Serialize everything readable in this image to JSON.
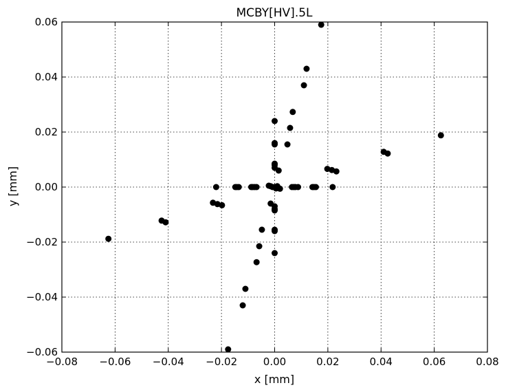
{
  "chart_data": {
    "type": "scatter",
    "title": "MCBY[HV].5L",
    "xlabel": "x [mm]",
    "ylabel": "y [mm]",
    "xlim": [
      -0.08,
      0.08
    ],
    "ylim": [
      -0.06,
      0.06
    ],
    "xticks": [
      -0.08,
      -0.06,
      -0.04,
      -0.02,
      0.0,
      0.02,
      0.04,
      0.06,
      0.08
    ],
    "xtick_labels": [
      "−0.08",
      "−0.06",
      "−0.04",
      "−0.02",
      "0.00",
      "0.02",
      "0.04",
      "0.06",
      "0.08"
    ],
    "yticks": [
      -0.06,
      -0.04,
      -0.02,
      0.0,
      0.02,
      0.04,
      0.06
    ],
    "ytick_labels": [
      "−0.06",
      "−0.04",
      "−0.02",
      "0.00",
      "0.02",
      "0.04",
      "0.06"
    ],
    "grid": true,
    "grid_style": "dotted",
    "marker_color": "#000000",
    "series": [
      {
        "points": [
          [
            -0.0625,
            -0.0188
          ],
          [
            -0.0425,
            -0.0122
          ],
          [
            -0.041,
            -0.0128
          ],
          [
            -0.0232,
            -0.0057
          ],
          [
            -0.0215,
            -0.0062
          ],
          [
            -0.0198,
            -0.0066
          ],
          [
            -0.022,
            0.0
          ],
          [
            -0.0148,
            0.0
          ],
          [
            -0.0142,
            0.0
          ],
          [
            -0.0135,
            0.0
          ],
          [
            -0.0088,
            0.0
          ],
          [
            -0.0082,
            0.0
          ],
          [
            -0.0075,
            0.0
          ],
          [
            -0.0068,
            0.0
          ],
          [
            -0.0022,
            0.0005
          ],
          [
            -0.0015,
            0.0003
          ],
          [
            -0.0008,
            0.0
          ],
          [
            0.0,
            0.0
          ],
          [
            0.0005,
            -0.0005
          ],
          [
            0.001,
            0.0003
          ],
          [
            0.0015,
            -0.0004
          ],
          [
            0.002,
            -0.0006
          ],
          [
            0.0065,
            0.0
          ],
          [
            0.0072,
            0.0
          ],
          [
            0.0078,
            0.0
          ],
          [
            0.0088,
            0.0
          ],
          [
            0.0142,
            0.0
          ],
          [
            0.0148,
            0.0
          ],
          [
            0.0155,
            0.0
          ],
          [
            0.0218,
            0.0
          ],
          [
            0.0198,
            0.0066
          ],
          [
            0.0215,
            0.0062
          ],
          [
            0.0232,
            0.0057
          ],
          [
            0.041,
            0.0128
          ],
          [
            0.0425,
            0.0122
          ],
          [
            0.0625,
            0.0188
          ],
          [
            0.0,
            0.024
          ],
          [
            0.0,
            0.016
          ],
          [
            0.0,
            0.0155
          ],
          [
            0.0,
            0.0085
          ],
          [
            0.0,
            0.008
          ],
          [
            0.0,
            0.007
          ],
          [
            0.0015,
            0.006
          ],
          [
            0.0,
            -0.024
          ],
          [
            0.0,
            -0.016
          ],
          [
            0.0,
            -0.0155
          ],
          [
            0.0,
            -0.0085
          ],
          [
            0.0,
            -0.008
          ],
          [
            0.0,
            -0.007
          ],
          [
            -0.0015,
            -0.006
          ],
          [
            0.0175,
            0.059
          ],
          [
            0.012,
            0.043
          ],
          [
            0.011,
            0.037
          ],
          [
            0.0068,
            0.0273
          ],
          [
            0.0058,
            0.0215
          ],
          [
            0.0048,
            0.0155
          ],
          [
            -0.0175,
            -0.059
          ],
          [
            -0.012,
            -0.043
          ],
          [
            -0.011,
            -0.037
          ],
          [
            -0.0068,
            -0.0273
          ],
          [
            -0.0058,
            -0.0215
          ],
          [
            -0.0048,
            -0.0155
          ]
        ]
      }
    ]
  }
}
